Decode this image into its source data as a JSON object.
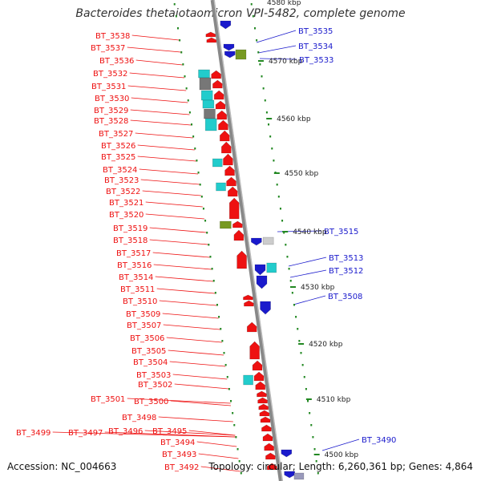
{
  "title": "Bacteroides thetaiotaomicron VPI-5482, complete genome",
  "footer": {
    "accession": "Accession: NC_004663",
    "stats": "Topology: circular; Length: 6,260,361 bp; Genes: 4,864"
  },
  "kbp_top": "4580 kbp",
  "ruler_labels": [
    "4570 kbp",
    "4560 kbp",
    "4550 kbp",
    "4540 kbp",
    "4530 kbp",
    "4520 kbp",
    "4510 kbp",
    "4500 kbp"
  ],
  "left_genes": [
    "BT_3538",
    "BT_3537",
    "BT_3536",
    "BT_3532",
    "BT_3531",
    "BT_3530",
    "BT_3529",
    "BT_3528",
    "BT_3527",
    "BT_3526",
    "BT_3525",
    "BT_3524",
    "BT_3523",
    "BT_3522",
    "BT_3521",
    "BT_3520",
    "BT_3519",
    "BT_3518",
    "BT_3517",
    "BT_3516",
    "BT_3514",
    "BT_3511",
    "BT_3510",
    "BT_3509",
    "BT_3507",
    "BT_3506",
    "BT_3505",
    "BT_3504",
    "BT_3503",
    "BT_3502",
    "BT_3501",
    "BT_3500",
    "BT_3498",
    "BT_3499",
    "BT_3497",
    "BT_3496",
    "BT_3495",
    "BT_3494",
    "BT_3493",
    "BT_3492"
  ],
  "right_genes": [
    "BT_3535",
    "BT_3534",
    "BT_3533",
    "BT_3515",
    "BT_3513",
    "BT_3512",
    "BT_3508",
    "BT_3490"
  ],
  "colors": {
    "forward": "#ee1111",
    "reverse": "#1a1acc",
    "cyan": "#22cccc",
    "gray": "#777777",
    "olive": "#779922",
    "tick": "#228822",
    "backbone": "#888888"
  }
}
